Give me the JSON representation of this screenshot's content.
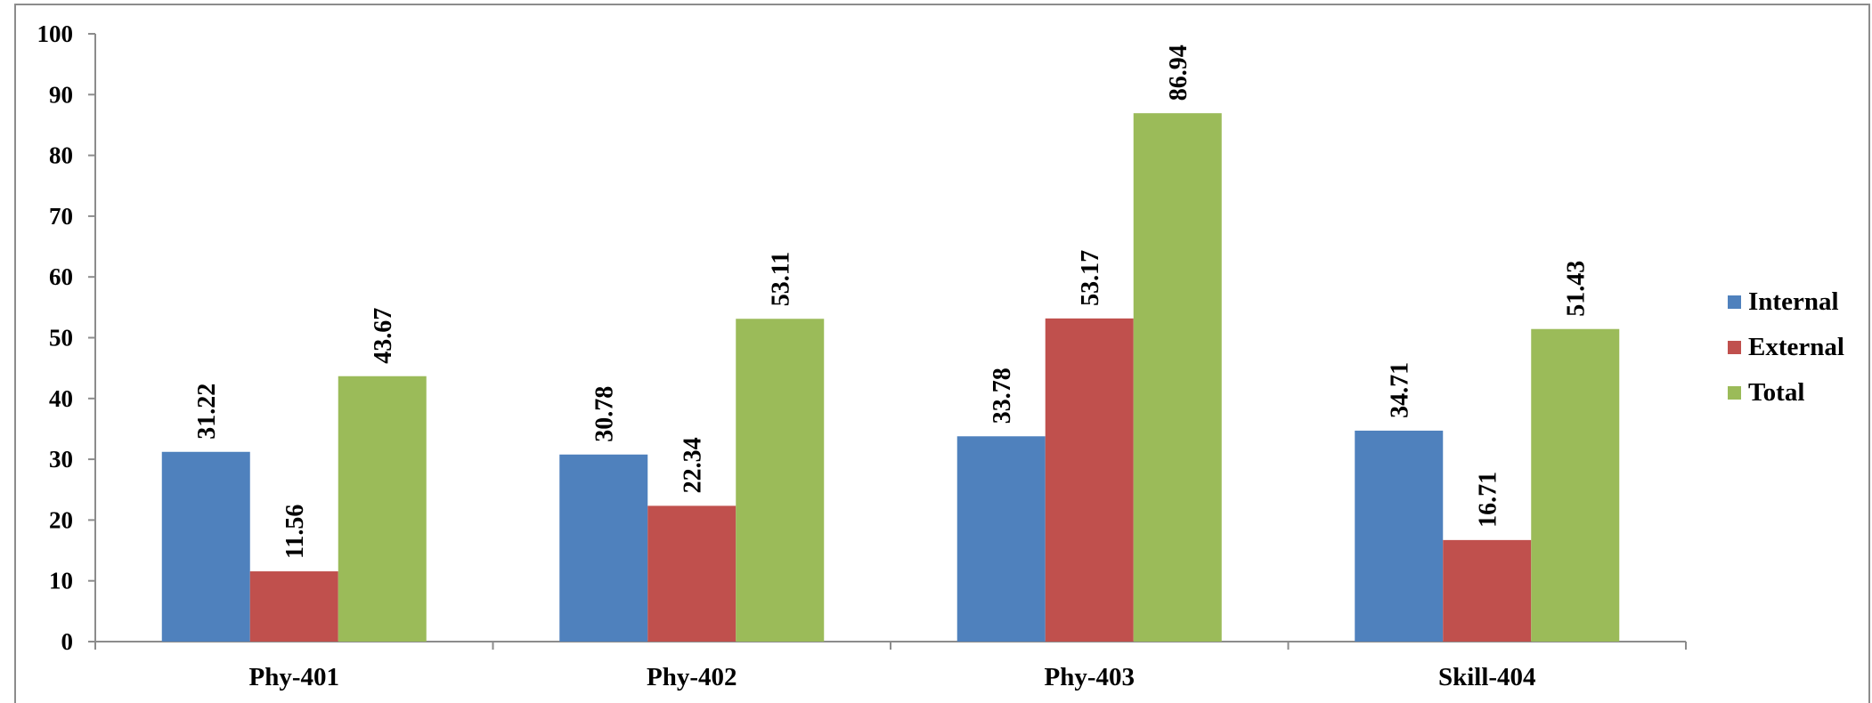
{
  "chart_data": {
    "type": "bar",
    "categories": [
      "Phy-401",
      "Phy-402",
      "Phy-403",
      "Skill-404"
    ],
    "series": [
      {
        "name": "Internal",
        "values": [
          31.22,
          30.78,
          33.78,
          34.71
        ],
        "color": "#4F81BD"
      },
      {
        "name": "External",
        "values": [
          11.56,
          22.34,
          53.17,
          16.71
        ],
        "color": "#C0504D"
      },
      {
        "name": "Total",
        "values": [
          43.67,
          53.11,
          86.94,
          51.43
        ],
        "color": "#9BBB59"
      }
    ],
    "data_labels": {
      "Internal": [
        "31.22",
        "30.78",
        "33.78",
        "34.71"
      ],
      "External": [
        "11.56",
        "22.34",
        "53.17",
        "16.71"
      ],
      "Total": [
        "43.67",
        "53.11",
        "86.94",
        "51.43"
      ]
    },
    "yticks": [
      "0",
      "10",
      "20",
      "30",
      "40",
      "50",
      "60",
      "70",
      "80",
      "90",
      "100"
    ],
    "ylim": [
      0,
      100
    ],
    "grid": false,
    "legend": "right"
  }
}
